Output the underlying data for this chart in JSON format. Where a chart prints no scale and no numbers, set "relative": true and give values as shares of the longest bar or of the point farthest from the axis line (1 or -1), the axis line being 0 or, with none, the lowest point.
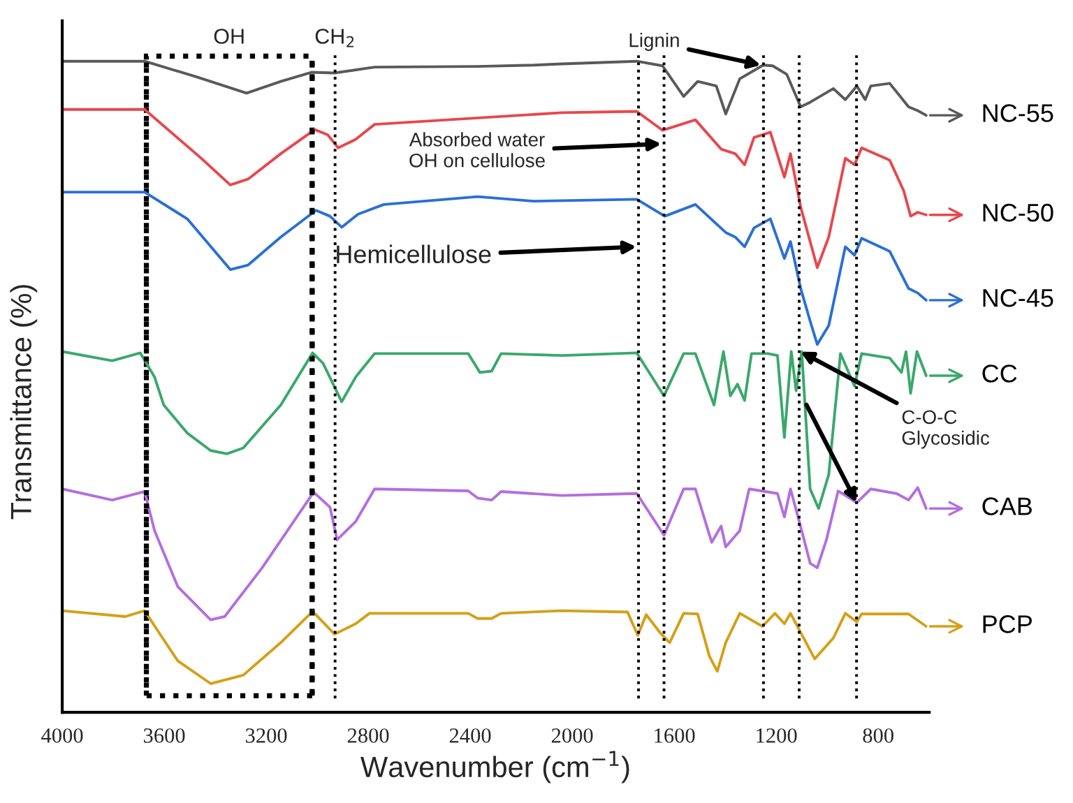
{
  "chart_data": {
    "type": "line",
    "relative": true,
    "xlabel": "Wavenumber (cm$^{−1}$)",
    "ylabel": "Transmittance (%)",
    "xlim": [
      4000,
      600
    ],
    "xticks": [
      4000,
      3600,
      3200,
      2800,
      2400,
      2000,
      1600,
      1200,
      800
    ],
    "grid": false,
    "legend": "right",
    "marker": "none",
    "line_style": "solid",
    "series": [
      {
        "name": "NC-55",
        "color": "#595959",
        "x": [
          4000,
          3677,
          3473,
          3277,
          3143,
          3023,
          2932,
          2775,
          2371,
          2151,
          2041,
          1747,
          1646,
          1563,
          1508,
          1435,
          1398,
          1343,
          1251,
          1214,
          1159,
          1104,
          1067,
          976,
          929,
          884,
          851,
          829,
          755,
          681,
          645,
          612
        ],
        "values": [
          1.0,
          1.0,
          0.976,
          0.951,
          0.969,
          0.983,
          0.982,
          0.991,
          0.992,
          0.994,
          0.996,
          1.0,
          0.993,
          0.946,
          0.969,
          0.962,
          0.919,
          0.973,
          0.994,
          0.993,
          0.98,
          0.93,
          0.937,
          0.958,
          0.941,
          0.962,
          0.941,
          0.962,
          0.966,
          0.93,
          0.924,
          0.917
        ]
      },
      {
        "name": "NC-50",
        "color": "#e8474c",
        "x": [
          4000,
          3677,
          3455,
          3341,
          3271,
          3143,
          3010,
          2959,
          2918,
          2849,
          2775,
          2041,
          1747,
          1646,
          1517,
          1416,
          1361,
          1324,
          1287,
          1223,
          1168,
          1144,
          1104,
          1067,
          1039,
          994,
          929,
          893,
          865,
          755,
          700,
          673,
          645,
          612
        ],
        "values": [
          0.926,
          0.926,
          0.851,
          0.81,
          0.819,
          0.858,
          0.895,
          0.887,
          0.867,
          0.88,
          0.903,
          0.921,
          0.923,
          0.894,
          0.91,
          0.865,
          0.858,
          0.841,
          0.883,
          0.891,
          0.822,
          0.858,
          0.776,
          0.723,
          0.683,
          0.73,
          0.851,
          0.841,
          0.867,
          0.848,
          0.801,
          0.762,
          0.768,
          0.764
        ]
      },
      {
        "name": "NC-45",
        "color": "#2a6fd6",
        "x": [
          4000,
          3677,
          3510,
          3341,
          3271,
          3143,
          3005,
          2950,
          2904,
          2840,
          2739,
          2371,
          2151,
          1747,
          1637,
          1517,
          1398,
          1361,
          1324,
          1287,
          1223,
          1168,
          1144,
          1104,
          1067,
          1039,
          994,
          929,
          893,
          865,
          755,
          681,
          645,
          612
        ],
        "values": [
          0.799,
          0.799,
          0.758,
          0.68,
          0.687,
          0.73,
          0.771,
          0.762,
          0.745,
          0.765,
          0.78,
          0.792,
          0.785,
          0.788,
          0.762,
          0.78,
          0.737,
          0.73,
          0.715,
          0.744,
          0.758,
          0.697,
          0.723,
          0.651,
          0.601,
          0.565,
          0.594,
          0.715,
          0.702,
          0.728,
          0.708,
          0.651,
          0.644,
          0.633
        ]
      },
      {
        "name": "CC",
        "color": "#3aa86b",
        "x": [
          4000,
          3804,
          3694,
          3638,
          3602,
          3510,
          3418,
          3354,
          3290,
          3143,
          3018,
          2977,
          2904,
          2849,
          2775,
          2408,
          2362,
          2316,
          2279,
          2041,
          1747,
          1640,
          1563,
          1517,
          1444,
          1407,
          1380,
          1352,
          1324,
          1297,
          1232,
          1195,
          1168,
          1141,
          1122,
          1100,
          1067,
          1034,
          994,
          948,
          893,
          865,
          755,
          709,
          691,
          673,
          648,
          612
        ],
        "values": [
          0.554,
          0.54,
          0.552,
          0.515,
          0.472,
          0.429,
          0.402,
          0.397,
          0.406,
          0.472,
          0.552,
          0.536,
          0.477,
          0.515,
          0.551,
          0.551,
          0.522,
          0.524,
          0.551,
          0.548,
          0.552,
          0.486,
          0.551,
          0.551,
          0.472,
          0.554,
          0.486,
          0.504,
          0.479,
          0.551,
          0.551,
          0.548,
          0.422,
          0.554,
          0.494,
          0.554,
          0.343,
          0.313,
          0.365,
          0.551,
          0.501,
          0.551,
          0.544,
          0.522,
          0.554,
          0.49,
          0.554,
          0.517
        ]
      },
      {
        "name": "CAB",
        "color": "#b36ee0",
        "x": [
          4000,
          3804,
          3677,
          3638,
          3547,
          3418,
          3363,
          3216,
          3014,
          2950,
          2922,
          2849,
          2775,
          2408,
          2371,
          2316,
          2279,
          2041,
          1747,
          1640,
          1563,
          1517,
          1453,
          1416,
          1398,
          1343,
          1306,
          1195,
          1168,
          1144,
          1100,
          1067,
          1039,
          1003,
          957,
          884,
          829,
          728,
          681,
          645,
          612
        ],
        "values": [
          0.343,
          0.326,
          0.339,
          0.279,
          0.193,
          0.142,
          0.147,
          0.222,
          0.338,
          0.315,
          0.265,
          0.293,
          0.343,
          0.34,
          0.329,
          0.326,
          0.339,
          0.333,
          0.336,
          0.272,
          0.343,
          0.343,
          0.261,
          0.286,
          0.254,
          0.279,
          0.343,
          0.336,
          0.3,
          0.343,
          0.279,
          0.229,
          0.222,
          0.265,
          0.34,
          0.322,
          0.343,
          0.336,
          0.326,
          0.345,
          0.313
        ]
      },
      {
        "name": "PCP",
        "color": "#d4a017",
        "x": [
          4000,
          3753,
          3677,
          3620,
          3547,
          3418,
          3290,
          3143,
          3018,
          2932,
          2849,
          2795,
          2408,
          2371,
          2316,
          2279,
          2041,
          1783,
          1743,
          1710,
          1655,
          1618,
          1563,
          1508,
          1462,
          1431,
          1398,
          1343,
          1254,
          1205,
          1168,
          1144,
          1049,
          976,
          929,
          884,
          865,
          681,
          612
        ],
        "values": [
          0.156,
          0.147,
          0.156,
          0.122,
          0.079,
          0.044,
          0.057,
          0.107,
          0.155,
          0.12,
          0.136,
          0.152,
          0.152,
          0.144,
          0.144,
          0.152,
          0.156,
          0.154,
          0.118,
          0.15,
          0.122,
          0.107,
          0.152,
          0.151,
          0.086,
          0.063,
          0.107,
          0.152,
          0.132,
          0.152,
          0.136,
          0.152,
          0.082,
          0.114,
          0.152,
          0.139,
          0.151,
          0.151,
          0.132
        ]
      }
    ],
    "ref_lines": [
      {
        "axis": "x",
        "value": 3670,
        "line_style": "dotted"
      },
      {
        "axis": "x",
        "value": 3020,
        "line_style": "dotted"
      },
      {
        "axis": "x",
        "value": 2930,
        "label": "CH$_{2}$",
        "line_style": "dotted"
      },
      {
        "axis": "x",
        "value": 1740,
        "line_style": "dotted"
      },
      {
        "axis": "x",
        "value": 1640,
        "line_style": "dotted"
      },
      {
        "axis": "x",
        "value": 1250,
        "line_style": "dotted"
      },
      {
        "axis": "x",
        "value": 1110,
        "line_style": "dotted"
      },
      {
        "axis": "x",
        "value": 885,
        "line_style": "dotted"
      }
    ],
    "annotations": [
      "OH",
      {
        "text": "Lignin",
        "x": 1260,
        "y": 0.994
      },
      {
        "text": "Absorbed water\nOH on cellulose",
        "x": 1650,
        "y": 0.873
      },
      {
        "text": "Hemicellulose",
        "x": 1748,
        "y": 0.715
      },
      {
        "text": "C-O-C\nGlycosidic",
        "x": 1105,
        "y": 0.554
      }
    ]
  }
}
